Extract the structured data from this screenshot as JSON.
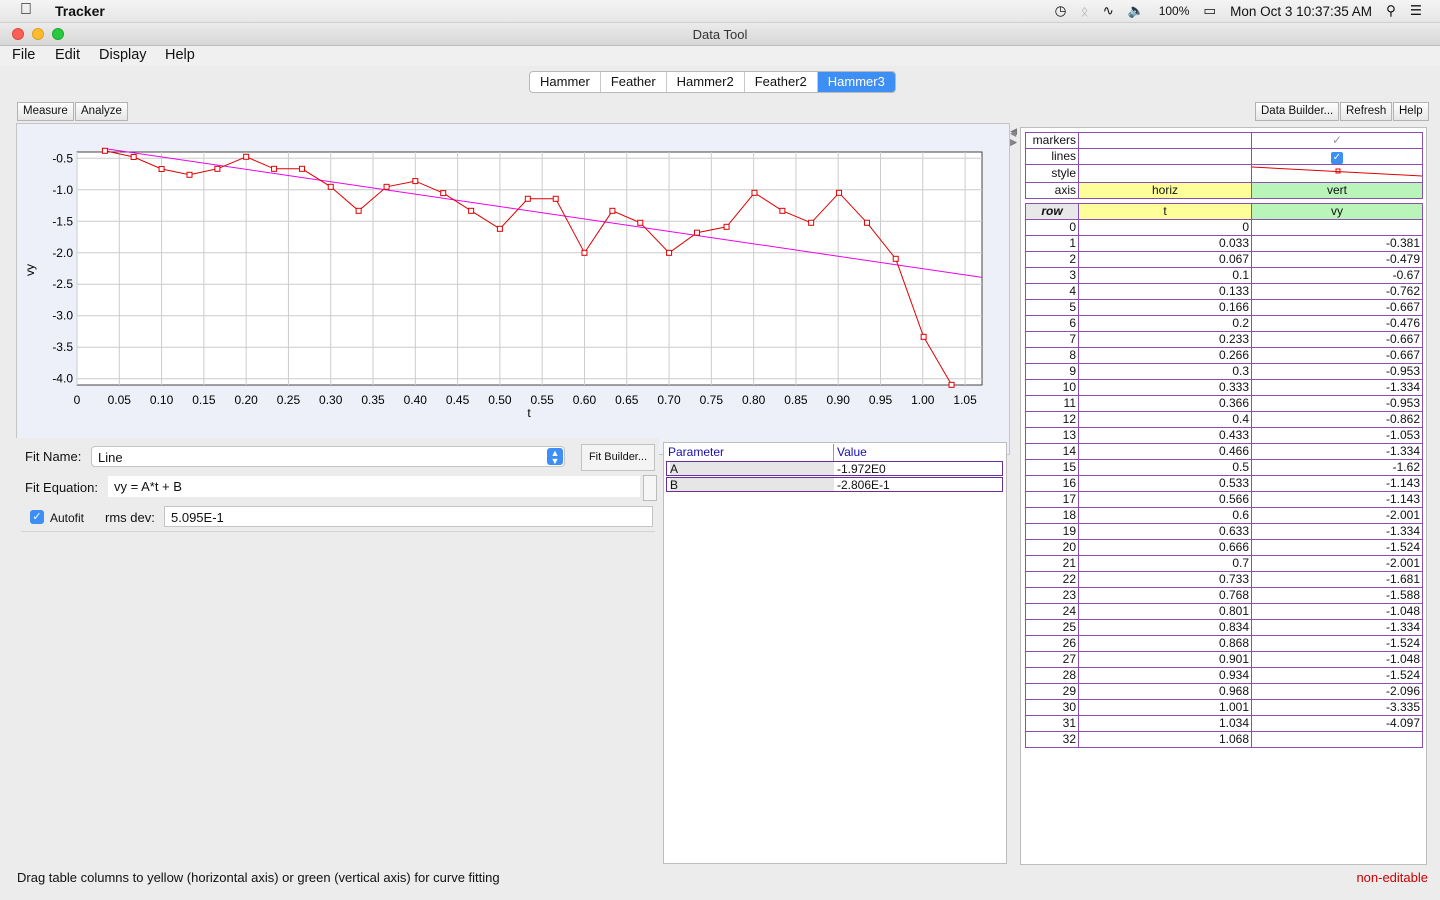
{
  "menubar": {
    "app_name": "Tracker",
    "battery": "100%",
    "clock": "Mon Oct 3  10:37:35 AM"
  },
  "window": {
    "title": "Data Tool"
  },
  "app_menu": {
    "file": "File",
    "edit": "Edit",
    "display": "Display",
    "help": "Help"
  },
  "tabs": [
    {
      "label": "Hammer",
      "active": false
    },
    {
      "label": "Feather",
      "active": false
    },
    {
      "label": "Hammer2",
      "active": false
    },
    {
      "label": "Feather2",
      "active": false
    },
    {
      "label": "Hammer3",
      "active": true
    }
  ],
  "toolbar": {
    "measure": "Measure",
    "analyze": "Analyze",
    "data_builder": "Data Builder...",
    "refresh": "Refresh",
    "help": "Help"
  },
  "chart_data": {
    "type": "line",
    "xlabel": "t",
    "ylabel": "vy",
    "xlim": [
      0,
      1.07
    ],
    "ylim": [
      -4.1,
      -0.4
    ],
    "x_ticks": [
      "0",
      "0.05",
      "0.10",
      "0.15",
      "0.20",
      "0.25",
      "0.30",
      "0.35",
      "0.40",
      "0.45",
      "0.50",
      "0.55",
      "0.60",
      "0.65",
      "0.70",
      "0.75",
      "0.80",
      "0.85",
      "0.90",
      "0.95",
      "1.00",
      "1.05"
    ],
    "y_ticks": [
      "-0.5",
      "-1.0",
      "-1.5",
      "-2.0",
      "-2.5",
      "-3.0",
      "-3.5",
      "-4.0"
    ],
    "series": [
      {
        "color": "#e00000",
        "x": [
          0.033,
          0.067,
          0.1,
          0.133,
          0.166,
          0.2,
          0.233,
          0.266,
          0.3,
          0.333,
          0.366,
          0.4,
          0.433,
          0.466,
          0.5,
          0.533,
          0.566,
          0.6,
          0.633,
          0.666,
          0.7,
          0.733,
          0.768,
          0.801,
          0.834,
          0.868,
          0.901,
          0.934,
          0.968,
          1.001,
          1.034
        ],
        "y": [
          -0.381,
          -0.479,
          -0.67,
          -0.762,
          -0.667,
          -0.476,
          -0.667,
          -0.667,
          -0.953,
          -1.334,
          -0.953,
          -0.862,
          -1.053,
          -1.334,
          -1.62,
          -1.143,
          -1.143,
          -2.001,
          -1.334,
          -1.524,
          -2.001,
          -1.681,
          -1.588,
          -1.048,
          -1.334,
          -1.524,
          -1.048,
          -1.524,
          -2.096,
          -3.335,
          -4.097
        ]
      }
    ],
    "fit_line": {
      "color": "#ee00ee",
      "slope": -1.972,
      "intercept": -0.2806
    }
  },
  "fit": {
    "name_label": "Fit Name:",
    "name_value": "Line",
    "builder_button": "Fit Builder...",
    "equation_label": "Fit Equation:",
    "equation_value": "vy = A*t + B",
    "autofit_label": "Autofit",
    "autofit_checked": true,
    "rms_label": "rms dev:",
    "rms_value": "5.095E-1"
  },
  "params": {
    "header_param": "Parameter",
    "header_value": "Value",
    "rows": [
      {
        "name": "A",
        "value": "-1.972E0"
      },
      {
        "name": "B",
        "value": "-2.806E-1"
      }
    ]
  },
  "data_table": {
    "prop_labels": {
      "markers": "markers",
      "lines": "lines",
      "style": "style",
      "axis": "axis"
    },
    "axis_horiz": "horiz",
    "axis_vert": "vert",
    "header_row": "row",
    "header_c1": "t",
    "header_c2": "vy",
    "rows": [
      [
        "0",
        "0",
        ""
      ],
      [
        "1",
        "0.033",
        "-0.381"
      ],
      [
        "2",
        "0.067",
        "-0.479"
      ],
      [
        "3",
        "0.1",
        "-0.67"
      ],
      [
        "4",
        "0.133",
        "-0.762"
      ],
      [
        "5",
        "0.166",
        "-0.667"
      ],
      [
        "6",
        "0.2",
        "-0.476"
      ],
      [
        "7",
        "0.233",
        "-0.667"
      ],
      [
        "8",
        "0.266",
        "-0.667"
      ],
      [
        "9",
        "0.3",
        "-0.953"
      ],
      [
        "10",
        "0.333",
        "-1.334"
      ],
      [
        "11",
        "0.366",
        "-0.953"
      ],
      [
        "12",
        "0.4",
        "-0.862"
      ],
      [
        "13",
        "0.433",
        "-1.053"
      ],
      [
        "14",
        "0.466",
        "-1.334"
      ],
      [
        "15",
        "0.5",
        "-1.62"
      ],
      [
        "16",
        "0.533",
        "-1.143"
      ],
      [
        "17",
        "0.566",
        "-1.143"
      ],
      [
        "18",
        "0.6",
        "-2.001"
      ],
      [
        "19",
        "0.633",
        "-1.334"
      ],
      [
        "20",
        "0.666",
        "-1.524"
      ],
      [
        "21",
        "0.7",
        "-2.001"
      ],
      [
        "22",
        "0.733",
        "-1.681"
      ],
      [
        "23",
        "0.768",
        "-1.588"
      ],
      [
        "24",
        "0.801",
        "-1.048"
      ],
      [
        "25",
        "0.834",
        "-1.334"
      ],
      [
        "26",
        "0.868",
        "-1.524"
      ],
      [
        "27",
        "0.901",
        "-1.048"
      ],
      [
        "28",
        "0.934",
        "-1.524"
      ],
      [
        "29",
        "0.968",
        "-2.096"
      ],
      [
        "30",
        "1.001",
        "-3.335"
      ],
      [
        "31",
        "1.034",
        "-4.097"
      ],
      [
        "32",
        "1.068",
        ""
      ]
    ]
  },
  "status": {
    "hint": "Drag table columns to yellow (horizontal axis) or green (vertical axis) for curve fitting",
    "mode": "non-editable"
  },
  "colors": {
    "accent": "#3d8ef5",
    "horiz": "#ffff99",
    "vert": "#b9f5b9"
  }
}
